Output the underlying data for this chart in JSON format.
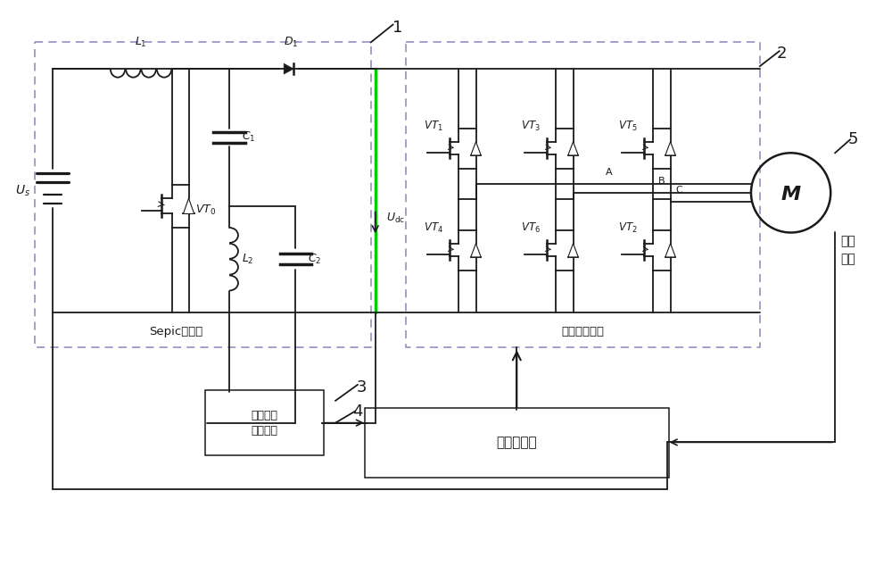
{
  "bg_color": "#ffffff",
  "line_color": "#1a1a1a",
  "dashed_box_color": "#8888bb",
  "green_line_color": "#00cc00",
  "figure_size": [
    10.0,
    6.34
  ],
  "dpi": 100,
  "labels": {
    "Us": "$U_s$",
    "Udc": "$U_{\\mathrm{dc}}$",
    "L1": "$L_1$",
    "C1": "$C_1$",
    "D1": "$D_1$",
    "L2": "$L_2$",
    "C2": "$C_2$",
    "VT0": "$VT_0$",
    "VT1": "$VT_1$",
    "VT2": "$VT_2$",
    "VT3": "$VT_3$",
    "VT4": "$VT_4$",
    "VT5": "$VT_5$",
    "VT6": "$VT_6$",
    "sepic": "Sepic变换器",
    "inverter": "电压型逆变器",
    "dc_sample": "直流电压\n采样模块",
    "motor_ctrl": "电机控制器",
    "hall": "霍尔\n信号",
    "nodeA": "A",
    "nodeB": "B",
    "nodeC": "C",
    "M": "M"
  }
}
